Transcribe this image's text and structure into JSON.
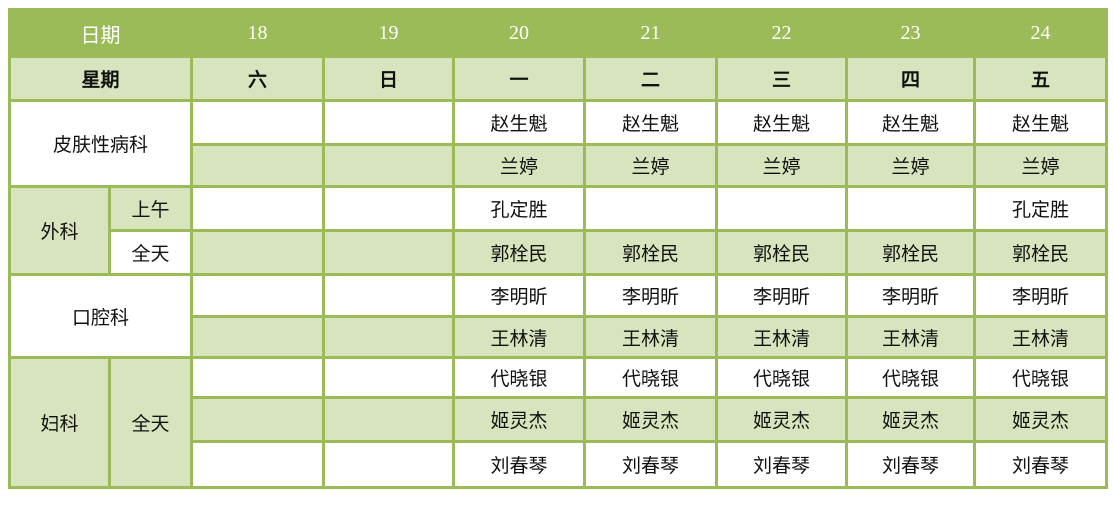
{
  "header": {
    "date_label": "日期",
    "dates": [
      "18",
      "19",
      "20",
      "21",
      "22",
      "23",
      "24"
    ]
  },
  "weekday_row": {
    "label": "星期",
    "days": [
      "六",
      "日",
      "一",
      "二",
      "三",
      "四",
      "五"
    ]
  },
  "rows": [
    {
      "dept": "皮肤性病科",
      "session": "",
      "cells": [
        "",
        "",
        "赵生魁",
        "赵生魁",
        "赵生魁",
        "赵生魁",
        "赵生魁"
      ]
    },
    {
      "dept": "",
      "session": "",
      "cells": [
        "",
        "",
        "兰婷",
        "兰婷",
        "兰婷",
        "兰婷",
        "兰婷"
      ]
    },
    {
      "dept": "外科",
      "session": "上午",
      "cells": [
        "",
        "",
        "孔定胜",
        "",
        "",
        "",
        "孔定胜"
      ]
    },
    {
      "dept": "",
      "session": "全天",
      "cells": [
        "",
        "",
        "郭栓民",
        "郭栓民",
        "郭栓民",
        "郭栓民",
        "郭栓民"
      ]
    },
    {
      "dept": "口腔科",
      "session": "",
      "cells": [
        "",
        "",
        "李明昕",
        "李明昕",
        "李明昕",
        "李明昕",
        "李明昕"
      ]
    },
    {
      "dept": "",
      "session": "",
      "cells": [
        "",
        "",
        "王林清",
        "王林清",
        "王林清",
        "王林清",
        "王林清"
      ]
    },
    {
      "dept": "妇科",
      "session": "全天",
      "cells": [
        "",
        "",
        "代晓银",
        "代晓银",
        "代晓银",
        "代晓银",
        "代晓银"
      ]
    },
    {
      "dept": "",
      "session": "",
      "cells": [
        "",
        "",
        "姬灵杰",
        "姬灵杰",
        "姬灵杰",
        "姬灵杰",
        "姬灵杰"
      ]
    },
    {
      "dept": "",
      "session": "",
      "cells": [
        "",
        "",
        "刘春琴",
        "刘春琴",
        "刘春琴",
        "刘春琴",
        "刘春琴"
      ]
    }
  ],
  "colors": {
    "header": "#9bbb59",
    "band": "#d7e4bd",
    "border": "#9bbb59"
  }
}
